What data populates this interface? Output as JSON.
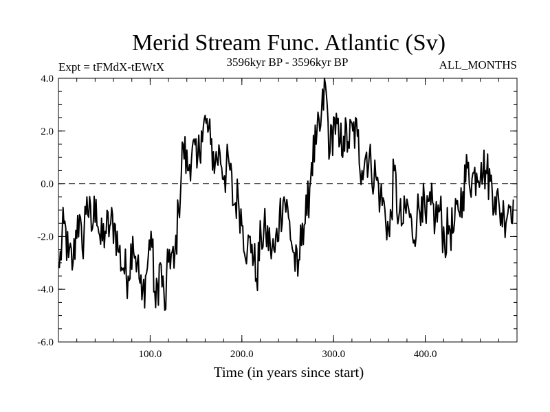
{
  "chart_data": {
    "type": "line",
    "title": "Merid Stream Func. Atlantic (Sv)",
    "subtitle_left": "Expt = tFMdX-tEWtX",
    "subtitle_center": "3596kyr BP - 3596kyr BP",
    "subtitle_right": "ALL_MONTHS",
    "xlabel": "Time (in years since start)",
    "ylabel": "",
    "xlim": [
      0,
      500
    ],
    "ylim": [
      -6,
      4
    ],
    "xticks": [
      100,
      200,
      300,
      400
    ],
    "xtick_labels": [
      "100.0",
      "200.0",
      "300.0",
      "400.0"
    ],
    "yticks": [
      -6,
      -4,
      -2,
      0,
      2,
      4
    ],
    "ytick_labels": [
      "-6.0",
      "-4.0",
      "-2.0",
      "0.0",
      "2.0",
      "4.0"
    ],
    "zero_line": true,
    "grid": false,
    "series": [
      {
        "name": "Merid Stream Func. Atlantic",
        "x_start": 1,
        "x_step": 5,
        "values": [
          -3.2,
          -1.5,
          -2.8,
          -3.0,
          -1.2,
          -2.5,
          -0.5,
          -1.8,
          -0.6,
          -2.3,
          -1.8,
          -1.6,
          -1.5,
          -2.6,
          -3.2,
          -3.5,
          -2.0,
          -3.0,
          -4.4,
          -3.4,
          -1.8,
          -4.7,
          -3.0,
          -4.8,
          -2.5,
          -3.2,
          -1.0,
          1.5,
          0.5,
          1.4,
          0.6,
          2.0,
          2.3,
          1.5,
          0.8,
          1.2,
          0.3,
          0.8,
          -0.8,
          -0.5,
          -1.6,
          -2.5,
          -2.3,
          -3.6,
          -2.0,
          -1.8,
          -2.4,
          -2.6,
          -1.2,
          -0.5,
          -1.3,
          -2.6,
          -3.5,
          -1.5,
          -1.2,
          0.8,
          1.5,
          2.2,
          3.8,
          1.2,
          2.5,
          1.4,
          1.8,
          1.6,
          2.0,
          1.8,
          0.5,
          1.2,
          0.6,
          0.3,
          -0.5,
          -1.0,
          -2.0,
          0.5,
          -1.3,
          -1.5,
          -0.8,
          -2.0,
          -1.2,
          -0.5,
          -1.5,
          -0.8,
          -1.3,
          -1.0,
          -2.2,
          -1.6,
          -1.8,
          -1.0,
          -0.3,
          0.6,
          0.2,
          0.4,
          0.8,
          0.5,
          0.1,
          -0.5,
          -1.0,
          -1.2,
          -0.8,
          -0.6
        ]
      }
    ]
  }
}
